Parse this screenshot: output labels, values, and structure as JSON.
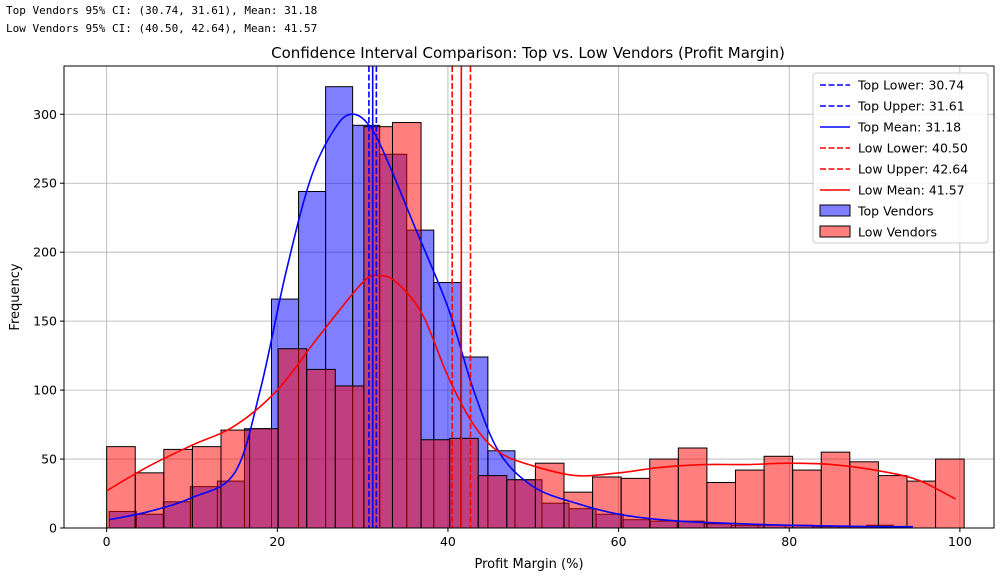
{
  "console": {
    "line1": "Top Vendors 95% CI: (30.74, 31.61), Mean: 31.18",
    "line2": "Low Vendors 95% CI: (40.50, 42.64), Mean: 41.57"
  },
  "chart_data": {
    "type": "histogram",
    "title": "Confidence Interval Comparison: Top vs. Low Vendors (Profit Margin)",
    "xlabel": "Profit Margin (%)",
    "ylabel": "Frequency",
    "xlim": [
      -5,
      104
    ],
    "ylim": [
      0,
      335
    ],
    "xticks": [
      0,
      20,
      40,
      60,
      80,
      100
    ],
    "yticks": [
      0,
      50,
      100,
      150,
      200,
      250,
      300
    ],
    "grid": true,
    "legend_position": "upper right",
    "series": [
      {
        "name": "Top Vendors",
        "color": "#0000ff",
        "bin_start": 0.3,
        "bin_width": 3.17,
        "values": [
          12,
          10,
          19,
          30,
          34,
          72,
          166,
          244,
          320,
          292,
          271,
          216,
          178,
          124,
          56,
          35,
          18,
          14,
          10,
          6,
          5,
          5,
          3,
          2,
          2,
          2,
          1,
          1,
          2,
          0
        ],
        "kde": [
          [
            0.3,
            6
          ],
          [
            5,
            12
          ],
          [
            10,
            22
          ],
          [
            15,
            40
          ],
          [
            18,
            100
          ],
          [
            21,
            185
          ],
          [
            24,
            255
          ],
          [
            27,
            292
          ],
          [
            29,
            300
          ],
          [
            31,
            290
          ],
          [
            33,
            265
          ],
          [
            36,
            220
          ],
          [
            40,
            160
          ],
          [
            43,
            100
          ],
          [
            46,
            55
          ],
          [
            50,
            30
          ],
          [
            55,
            18
          ],
          [
            60,
            10
          ],
          [
            65,
            6
          ],
          [
            70,
            4
          ],
          [
            80,
            2
          ],
          [
            90,
            1
          ],
          [
            94.5,
            1
          ]
        ]
      },
      {
        "name": "Low Vendors",
        "color": "#ff0000",
        "bin_start": 0.0,
        "bin_width": 3.35,
        "values": [
          59,
          40,
          57,
          59,
          71,
          72,
          130,
          115,
          103,
          291,
          294,
          64,
          65,
          38,
          35,
          47,
          26,
          37,
          36,
          50,
          58,
          33,
          42,
          52,
          42,
          55,
          48,
          38,
          34,
          50
        ],
        "kde": [
          [
            0,
            27
          ],
          [
            5,
            45
          ],
          [
            10,
            60
          ],
          [
            15,
            74
          ],
          [
            20,
            100
          ],
          [
            25,
            140
          ],
          [
            30,
            178
          ],
          [
            32,
            183
          ],
          [
            34,
            178
          ],
          [
            37,
            155
          ],
          [
            40,
            110
          ],
          [
            43,
            75
          ],
          [
            46,
            55
          ],
          [
            50,
            45
          ],
          [
            55,
            38
          ],
          [
            60,
            40
          ],
          [
            65,
            44
          ],
          [
            70,
            46
          ],
          [
            75,
            46
          ],
          [
            80,
            47
          ],
          [
            85,
            46
          ],
          [
            90,
            42
          ],
          [
            95,
            35
          ],
          [
            99.5,
            21
          ]
        ]
      }
    ],
    "vlines": [
      {
        "name": "Top Lower: 30.74",
        "x": 30.74,
        "color": "#0000ff",
        "style": "dashed"
      },
      {
        "name": "Top Upper: 31.61",
        "x": 31.61,
        "color": "#0000ff",
        "style": "dashed"
      },
      {
        "name": "Top Mean: 31.18",
        "x": 31.18,
        "color": "#0000ff",
        "style": "solid"
      },
      {
        "name": "Low Lower: 40.50",
        "x": 40.5,
        "color": "#ff0000",
        "style": "dashed"
      },
      {
        "name": "Low Upper: 42.64",
        "x": 42.64,
        "color": "#ff0000",
        "style": "dashed"
      },
      {
        "name": "Low Mean: 41.57",
        "x": 41.57,
        "color": "#ff0000",
        "style": "solid"
      }
    ]
  }
}
